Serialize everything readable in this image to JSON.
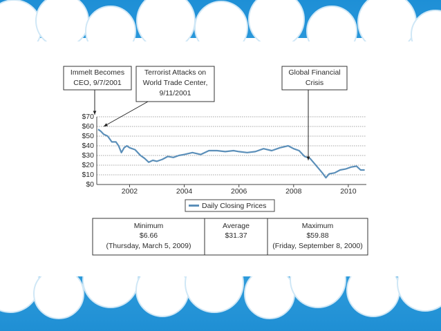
{
  "chart_data": {
    "type": "line",
    "x": [
      2000.85,
      2000.95,
      2001.05,
      2001.2,
      2001.35,
      2001.5,
      2001.6,
      2001.7,
      2001.8,
      2001.9,
      2002.0,
      2002.2,
      2002.4,
      2002.55,
      2002.7,
      2002.85,
      2003.0,
      2003.2,
      2003.4,
      2003.6,
      2003.8,
      2004.0,
      2004.3,
      2004.6,
      2004.9,
      2005.2,
      2005.5,
      2005.8,
      2006.0,
      2006.3,
      2006.6,
      2006.9,
      2007.2,
      2007.5,
      2007.8,
      2008.0,
      2008.2,
      2008.4,
      2008.6,
      2008.75,
      2008.9,
      2009.05,
      2009.18,
      2009.3,
      2009.5,
      2009.7,
      2009.9,
      2010.1,
      2010.3,
      2010.45,
      2010.6
    ],
    "series": [
      {
        "name": "Daily Closing Prices",
        "color": "#5b8fb9",
        "values": [
          57,
          55,
          52,
          50,
          44,
          44,
          40,
          33,
          38,
          40,
          38,
          36,
          30,
          27,
          23,
          25,
          24,
          26,
          29,
          28,
          30,
          31,
          33,
          31,
          35,
          35,
          34,
          35,
          34,
          33,
          34,
          37,
          35,
          38,
          40,
          37,
          35,
          29,
          27,
          22,
          17,
          12,
          7,
          11,
          12,
          15,
          16,
          18,
          19,
          15,
          15
        ]
      }
    ],
    "xlim": [
      2000.8,
      2010.66
    ],
    "xticks": [
      2002,
      2004,
      2006,
      2008,
      2010
    ],
    "ylim": [
      0,
      70
    ],
    "yticks": [
      {
        "value": 0,
        "label": "$0"
      },
      {
        "value": 10,
        "label": "$10"
      },
      {
        "value": 20,
        "label": "$20"
      },
      {
        "value": 30,
        "label": "$30"
      },
      {
        "value": 40,
        "label": "$40"
      },
      {
        "value": 50,
        "label": "$50"
      },
      {
        "value": 60,
        "label": "$60"
      },
      {
        "value": 70,
        "label": "$70"
      }
    ],
    "grid": true,
    "annotations": [
      {
        "lines": [
          "Immelt Becomes",
          "CEO, 9/7/2001"
        ]
      },
      {
        "lines": [
          "Terrorist Attacks on",
          "World Trade Center,",
          "9/11/2001"
        ]
      },
      {
        "lines": [
          "Global Financial",
          "Crisis"
        ]
      }
    ]
  },
  "table": {
    "columns": [
      {
        "label": "Minimum",
        "value": "$6.66",
        "note": "(Thursday, March 5, 2009)"
      },
      {
        "label": "Average",
        "value": "$31.37"
      },
      {
        "label": "Maximum",
        "value": "$59.88",
        "note": "(Friday, September 8, 2000)"
      }
    ]
  }
}
